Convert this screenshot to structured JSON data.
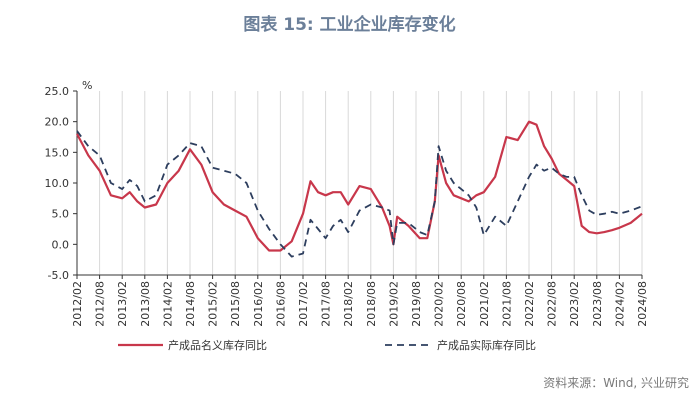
{
  "title": "图表 15: 工业企业库存变化",
  "source": "资料来源：Wind, 兴业研究",
  "colors": {
    "nominal": "#c8374b",
    "real": "#2d3e5e",
    "grid": "#d9d9d9",
    "axis": "#333333",
    "title": "#6b7f99"
  },
  "chart_data": {
    "type": "line",
    "unit": "%",
    "ylim": [
      -5,
      25
    ],
    "yticks": [
      "25.0",
      "20.0",
      "15.0",
      "10.0",
      "5.0",
      "0.0",
      "-5.0"
    ],
    "ytick_values": [
      25,
      20,
      15,
      10,
      5,
      0,
      -5
    ],
    "xticks": [
      "2012/02",
      "2012/08",
      "2013/02",
      "2013/08",
      "2014/02",
      "2014/08",
      "2015/02",
      "2015/08",
      "2016/02",
      "2016/08",
      "2017/02",
      "2017/08",
      "2018/02",
      "2018/08",
      "2019/02",
      "2019/08",
      "2020/02",
      "2020/08",
      "2021/02",
      "2021/08",
      "2022/02",
      "2022/08",
      "2023/02",
      "2023/08",
      "2024/02",
      "2024/08"
    ],
    "grid": "vertical",
    "legend_position": "bottom",
    "series": [
      {
        "name": "产成品名义库存同比",
        "style": "solid",
        "points": [
          [
            "2012/02",
            18.0
          ],
          [
            "2012/05",
            14.5
          ],
          [
            "2012/08",
            12.0
          ],
          [
            "2012/11",
            8.0
          ],
          [
            "2013/02",
            7.5
          ],
          [
            "2013/04",
            8.5
          ],
          [
            "2013/06",
            7.0
          ],
          [
            "2013/08",
            6.0
          ],
          [
            "2013/11",
            6.5
          ],
          [
            "2014/02",
            10.0
          ],
          [
            "2014/05",
            12.0
          ],
          [
            "2014/08",
            15.5
          ],
          [
            "2014/11",
            13.0
          ],
          [
            "2015/02",
            8.5
          ],
          [
            "2015/05",
            6.5
          ],
          [
            "2015/08",
            5.5
          ],
          [
            "2015/11",
            4.5
          ],
          [
            "2016/02",
            1.0
          ],
          [
            "2016/05",
            -1.0
          ],
          [
            "2016/08",
            -1.0
          ],
          [
            "2016/11",
            0.5
          ],
          [
            "2017/02",
            5.0
          ],
          [
            "2017/04",
            10.3
          ],
          [
            "2017/06",
            8.5
          ],
          [
            "2017/08",
            8.0
          ],
          [
            "2017/10",
            8.5
          ],
          [
            "2017/12",
            8.5
          ],
          [
            "2018/02",
            6.5
          ],
          [
            "2018/05",
            9.5
          ],
          [
            "2018/08",
            9.0
          ],
          [
            "2018/11",
            6.0
          ],
          [
            "2019/01",
            3.0
          ],
          [
            "2019/02",
            0.0
          ],
          [
            "2019/03",
            4.5
          ],
          [
            "2019/06",
            3.0
          ],
          [
            "2019/09",
            1.0
          ],
          [
            "2019/11",
            1.0
          ],
          [
            "2020/01",
            7.0
          ],
          [
            "2020/02",
            14.5
          ],
          [
            "2020/04",
            10.0
          ],
          [
            "2020/06",
            8.0
          ],
          [
            "2020/08",
            7.5
          ],
          [
            "2020/10",
            7.0
          ],
          [
            "2020/12",
            8.0
          ],
          [
            "2021/02",
            8.5
          ],
          [
            "2021/05",
            11.0
          ],
          [
            "2021/08",
            17.5
          ],
          [
            "2021/11",
            17.0
          ],
          [
            "2022/02",
            20.0
          ],
          [
            "2022/04",
            19.5
          ],
          [
            "2022/06",
            16.0
          ],
          [
            "2022/08",
            14.0
          ],
          [
            "2022/10",
            11.5
          ],
          [
            "2022/12",
            10.5
          ],
          [
            "2023/02",
            9.5
          ],
          [
            "2023/04",
            3.0
          ],
          [
            "2023/06",
            2.0
          ],
          [
            "2023/08",
            1.8
          ],
          [
            "2023/10",
            2.0
          ],
          [
            "2023/12",
            2.3
          ],
          [
            "2024/02",
            2.7
          ],
          [
            "2024/05",
            3.5
          ],
          [
            "2024/08",
            5.0
          ]
        ]
      },
      {
        "name": "产成品实际库存同比",
        "style": "dashed",
        "points": [
          [
            "2012/02",
            18.5
          ],
          [
            "2012/05",
            16.0
          ],
          [
            "2012/08",
            14.5
          ],
          [
            "2012/11",
            10.0
          ],
          [
            "2013/02",
            9.0
          ],
          [
            "2013/04",
            10.5
          ],
          [
            "2013/06",
            9.5
          ],
          [
            "2013/08",
            7.0
          ],
          [
            "2013/11",
            8.0
          ],
          [
            "2014/02",
            13.0
          ],
          [
            "2014/05",
            14.5
          ],
          [
            "2014/08",
            16.5
          ],
          [
            "2014/11",
            16.0
          ],
          [
            "2015/02",
            12.5
          ],
          [
            "2015/05",
            12.0
          ],
          [
            "2015/08",
            11.5
          ],
          [
            "2015/11",
            10.0
          ],
          [
            "2016/02",
            5.5
          ],
          [
            "2016/05",
            2.5
          ],
          [
            "2016/08",
            0.0
          ],
          [
            "2016/11",
            -2.0
          ],
          [
            "2017/02",
            -1.5
          ],
          [
            "2017/04",
            4.0
          ],
          [
            "2017/06",
            2.5
          ],
          [
            "2017/08",
            1.0
          ],
          [
            "2017/10",
            3.0
          ],
          [
            "2017/12",
            4.0
          ],
          [
            "2018/02",
            2.0
          ],
          [
            "2018/05",
            5.5
          ],
          [
            "2018/08",
            6.5
          ],
          [
            "2018/11",
            6.0
          ],
          [
            "2019/01",
            5.5
          ],
          [
            "2019/02",
            0.0
          ],
          [
            "2019/03",
            3.5
          ],
          [
            "2019/06",
            3.5
          ],
          [
            "2019/09",
            2.0
          ],
          [
            "2019/11",
            1.5
          ],
          [
            "2020/01",
            7.0
          ],
          [
            "2020/02",
            16.0
          ],
          [
            "2020/04",
            12.0
          ],
          [
            "2020/06",
            10.0
          ],
          [
            "2020/08",
            9.0
          ],
          [
            "2020/10",
            8.0
          ],
          [
            "2020/12",
            6.0
          ],
          [
            "2021/02",
            1.5
          ],
          [
            "2021/05",
            4.5
          ],
          [
            "2021/08",
            3.0
          ],
          [
            "2021/11",
            7.0
          ],
          [
            "2022/02",
            11.0
          ],
          [
            "2022/04",
            13.0
          ],
          [
            "2022/06",
            12.0
          ],
          [
            "2022/08",
            12.5
          ],
          [
            "2022/10",
            11.5
          ],
          [
            "2022/12",
            11.0
          ],
          [
            "2023/02",
            11.0
          ],
          [
            "2023/04",
            8.0
          ],
          [
            "2023/06",
            5.5
          ],
          [
            "2023/08",
            4.8
          ],
          [
            "2023/10",
            5.0
          ],
          [
            "2023/12",
            5.3
          ],
          [
            "2024/02",
            5.0
          ],
          [
            "2024/05",
            5.5
          ],
          [
            "2024/08",
            6.2
          ]
        ]
      }
    ]
  }
}
